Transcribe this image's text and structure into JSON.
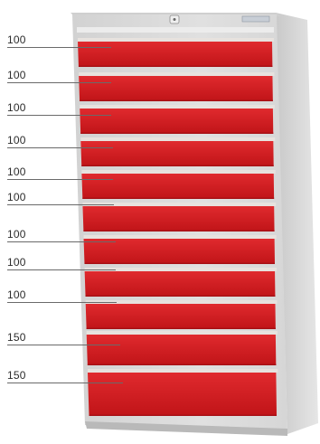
{
  "labels": [
    "100",
    "100",
    "100",
    "100",
    "100",
    "100",
    "100",
    "100",
    "100",
    "150",
    "150"
  ],
  "colors": {
    "cabinet": "#d9d9d9",
    "cabinet_dark": "#bdbdbd",
    "drawer_red": "#d31a1f",
    "drawer_red_dark": "#a81015",
    "handle": "#e7e2de",
    "leader_line": "#6a6a6a",
    "label_text": "#2b2b2b"
  },
  "icons": [
    "lock-icon",
    "brand-plate"
  ]
}
